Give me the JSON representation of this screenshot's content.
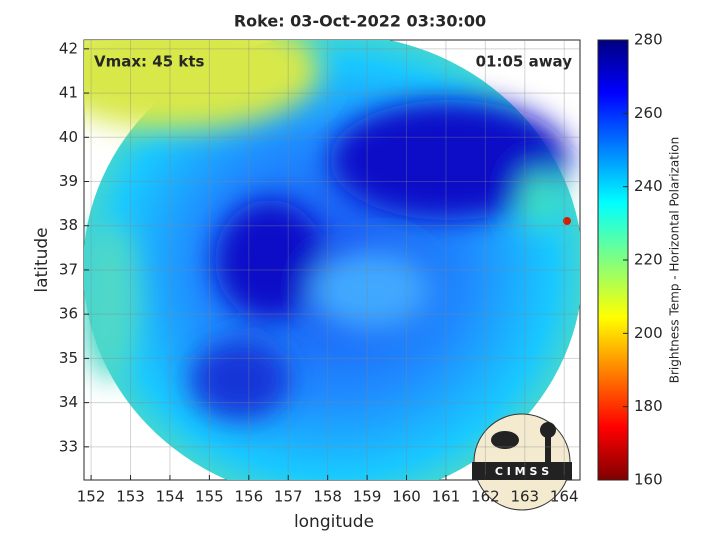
{
  "chart_data": {
    "type": "image",
    "title": "Roke: 03-Oct-2022 03:30:00",
    "xlabel": "longitude",
    "ylabel": "latitude",
    "xlim": [
      151.82,
      164.4
    ],
    "ylim": [
      32.25,
      42.2
    ],
    "xticks": [
      152,
      153,
      154,
      155,
      156,
      157,
      158,
      159,
      160,
      161,
      162,
      163,
      164
    ],
    "yticks": [
      33,
      34,
      35,
      36,
      37,
      38,
      39,
      40,
      41,
      42
    ],
    "grid": true,
    "annotations": [
      "Vmax: 45 kts",
      "01:05 away"
    ],
    "colorbar": {
      "label": "Brightness Temp - Horizontal Polarization",
      "clim": [
        160,
        280
      ],
      "ticks": [
        160,
        180,
        200,
        220,
        240,
        260,
        280
      ],
      "colormap": "jet"
    },
    "logo": "C I M S S"
  }
}
